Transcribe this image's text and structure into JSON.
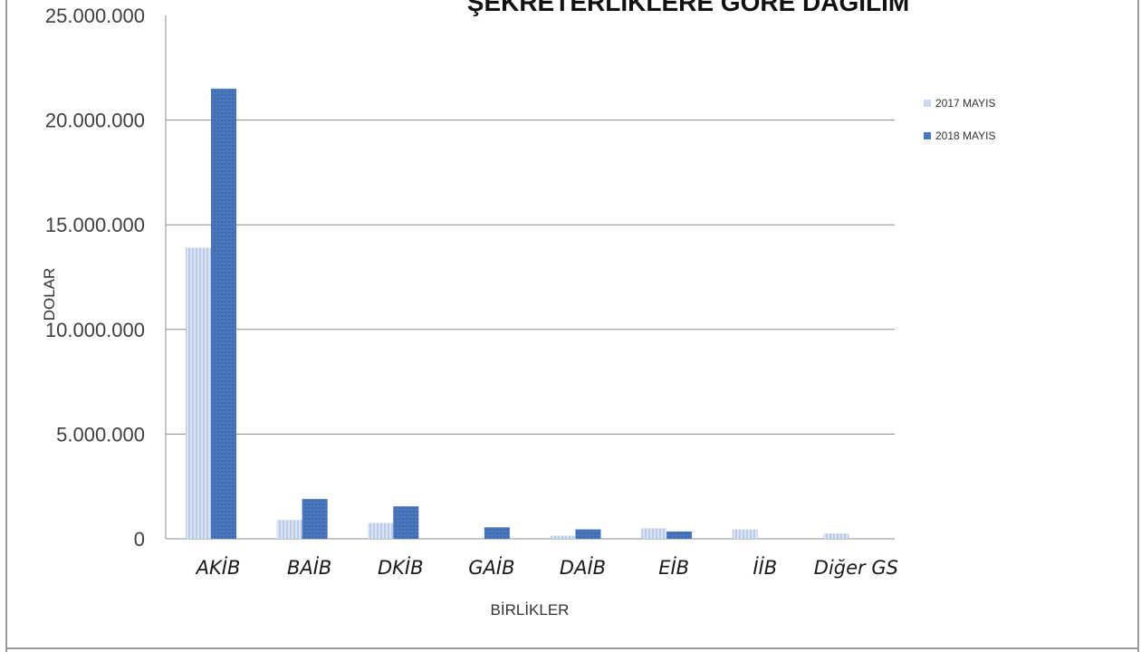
{
  "chart_data": {
    "type": "bar",
    "title": "ŞEKRETERLİKLERE GÖRE DAĞILIM",
    "xlabel": "BİRLİKLER",
    "ylabel": "DOLAR",
    "categories": [
      "AKİB",
      "BAİB",
      "DKİB",
      "GAİB",
      "DAİB",
      "EİB",
      "İİB",
      "Diğer GS"
    ],
    "series": [
      {
        "name": "2017 MAYIS",
        "values": [
          13900000,
          900000,
          750000,
          0,
          150000,
          500000,
          450000,
          250000
        ]
      },
      {
        "name": "2018 MAYIS",
        "values": [
          21500000,
          1900000,
          1550000,
          550000,
          450000,
          350000,
          0,
          0
        ]
      }
    ],
    "ylim": [
      0,
      25000000
    ],
    "yticks": [
      "0",
      "5.000.000",
      "10.000.000",
      "15.000.000",
      "20.000.000",
      "25.000.000"
    ],
    "grid": true,
    "legend_position": "right",
    "colors": {
      "series_2017": "#c9d7ee",
      "series_2018": "#4a76bd",
      "grid": "#8c8c8c"
    }
  }
}
